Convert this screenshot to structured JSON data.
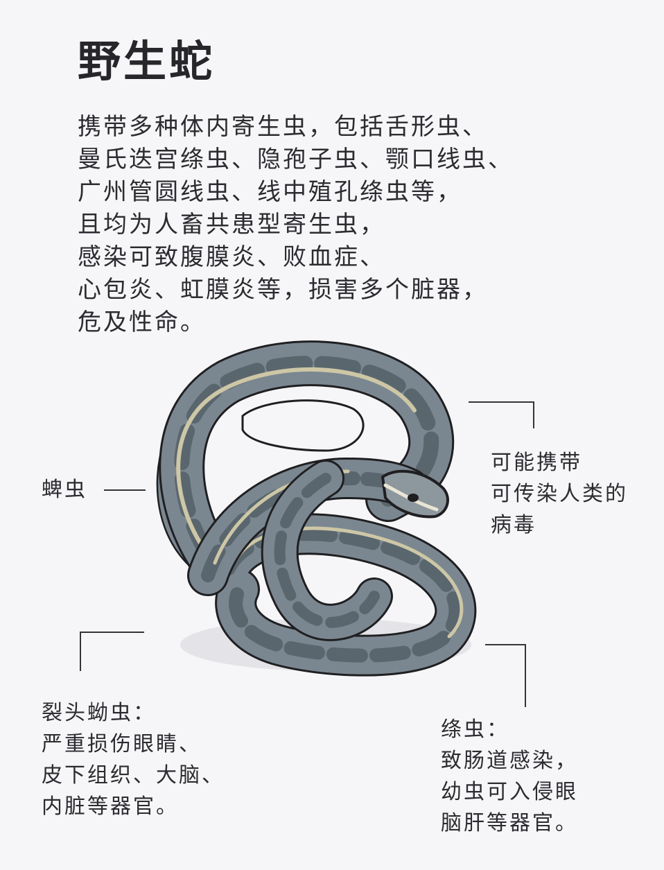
{
  "title": "野生蛇",
  "intro_lines": [
    "携带多种体内寄生虫，包括舌形虫、",
    "曼氏迭宫绦虫、隐孢子虫、颚口线虫、",
    "广州管圆线虫、线中殖孔绦虫等，",
    "且均为人畜共患型寄生虫，",
    "感染可致腹膜炎、败血症、",
    "心包炎、虹膜炎等，损害多个脏器，",
    "危及性命。"
  ],
  "labels": {
    "tick": {
      "lines": [
        "蜱虫"
      ]
    },
    "virus": {
      "lines": [
        "可能携带",
        "可传染人类的",
        "病毒"
      ]
    },
    "tapeworm_head": {
      "lines": [
        "裂头蚴虫：",
        "严重损伤眼睛、",
        "皮下组织、大脑、",
        "内脏等器官。"
      ]
    },
    "tapeworm": {
      "lines": [
        "绦虫：",
        "致肠道感染，",
        "幼虫可入侵眼",
        "脑肝等器官。"
      ]
    }
  },
  "colors": {
    "background": "#f6f6f8",
    "text": "#2b2b30",
    "snake_body": "#7b8790",
    "snake_dark": "#5a666e",
    "snake_stripe": "#cdc7a6",
    "outline": "#1f1f22",
    "leader_line": "#333338"
  },
  "illustration": {
    "icon": "coiled-snake-icon"
  }
}
